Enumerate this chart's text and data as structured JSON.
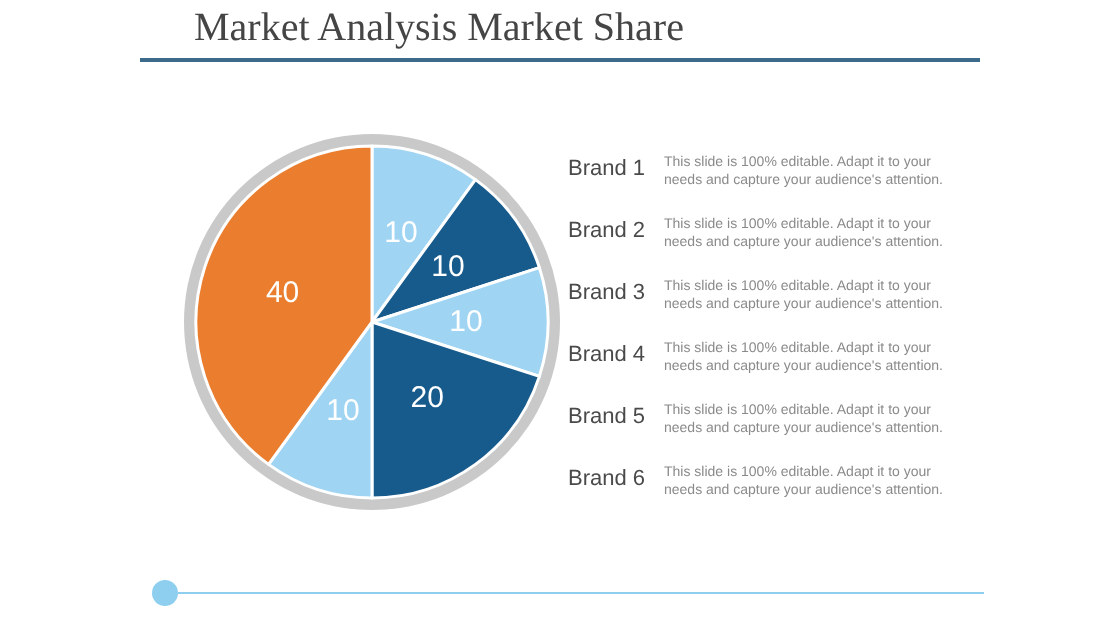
{
  "chart_data": {
    "type": "pie",
    "title": "Market Analysis Market Share",
    "categories": [
      null,
      null,
      null,
      null,
      null,
      null
    ],
    "values": [
      10,
      10,
      10,
      20,
      10,
      40
    ],
    "colors": [
      "#9fd4f3",
      "#175a8c",
      "#9fd4f3",
      "#175a8c",
      "#9fd4f3",
      "#ea7d2e"
    ],
    "data_labels": true,
    "annotations": [
      "Brand 1",
      "This slide is 100% editable. Adapt it to your needs and capture your audience's attention.",
      "Brand 2",
      "This slide is 100% editable. Adapt it to your needs and capture your audience's attention.",
      "Brand 3",
      "This slide is 100% editable. Adapt it to your needs and capture your audience's attention.",
      "Brand 4",
      "This slide is 100% editable. Adapt it to your needs and capture your audience's attention.",
      "Brand 5",
      "This slide is 100% editable. Adapt it to your needs and capture your audience's attention.",
      "Brand 6",
      "This slide is 100% editable. Adapt it to your needs and capture your audience's attention."
    ]
  }
}
